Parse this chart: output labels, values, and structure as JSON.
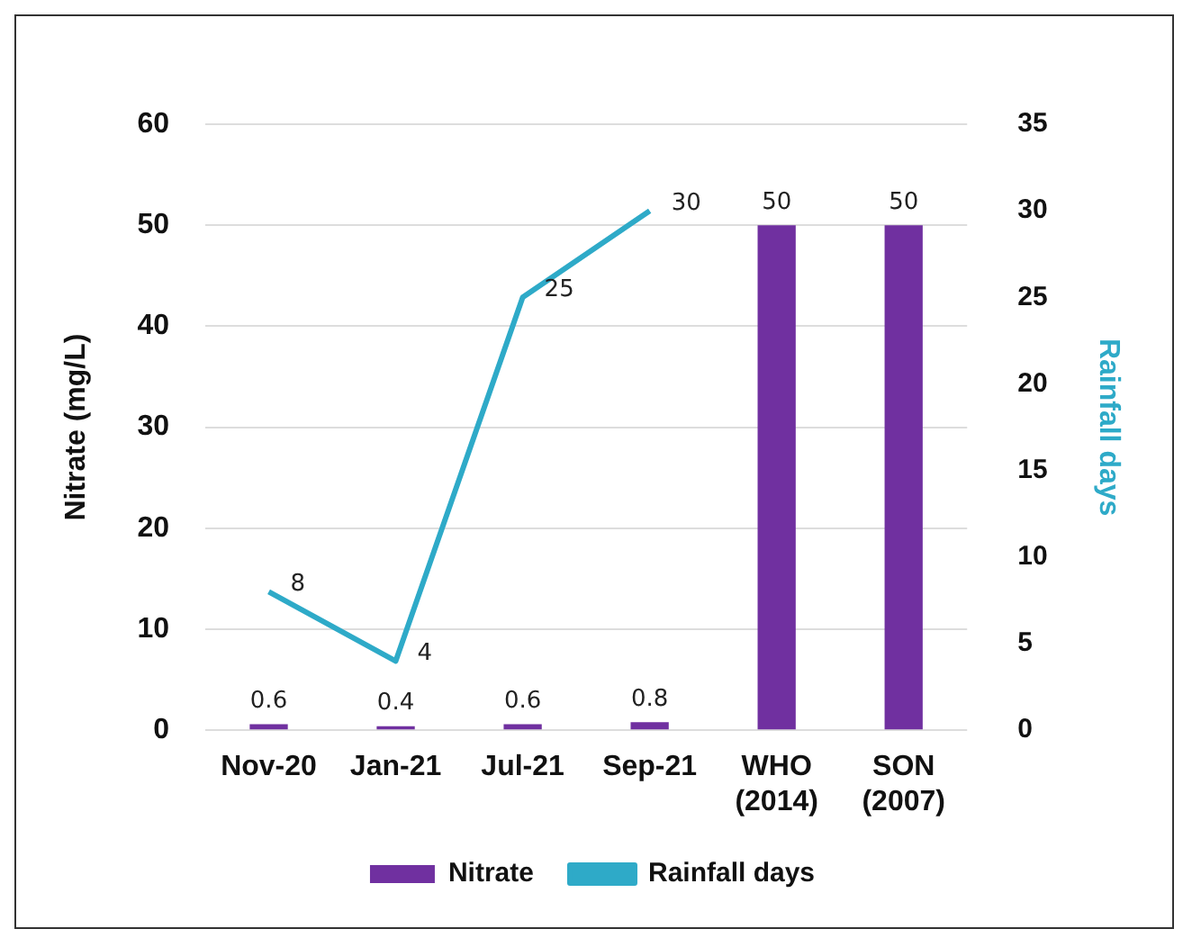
{
  "chart_data": {
    "type": "bar",
    "categories": [
      "Nov-20",
      "Jan-21",
      "Jul-21",
      "Sep-21",
      "WHO (2014)",
      "SON (2007)"
    ],
    "series": [
      {
        "name": "Nitrate",
        "color": "#7030a0",
        "values": [
          0.6,
          0.4,
          0.6,
          0.8,
          50,
          50
        ]
      },
      {
        "name": "Rainfall days",
        "type": "line",
        "axis": "y2",
        "color": "#2eaac8",
        "values": [
          8,
          4,
          25,
          30,
          null,
          null
        ]
      }
    ],
    "ylabel": "Nitrate (mg/L)",
    "y2label": "Rainfall days",
    "ylim": [
      0,
      60
    ],
    "yticks": [
      0,
      10,
      20,
      30,
      40,
      50,
      60
    ],
    "y2lim": [
      0,
      35
    ],
    "y2ticks": [
      0,
      5,
      10,
      15,
      20,
      25,
      30,
      35
    ],
    "grid": "y",
    "legend": "bottom",
    "data_labels": true,
    "marker": "none",
    "line_style": "solid"
  }
}
